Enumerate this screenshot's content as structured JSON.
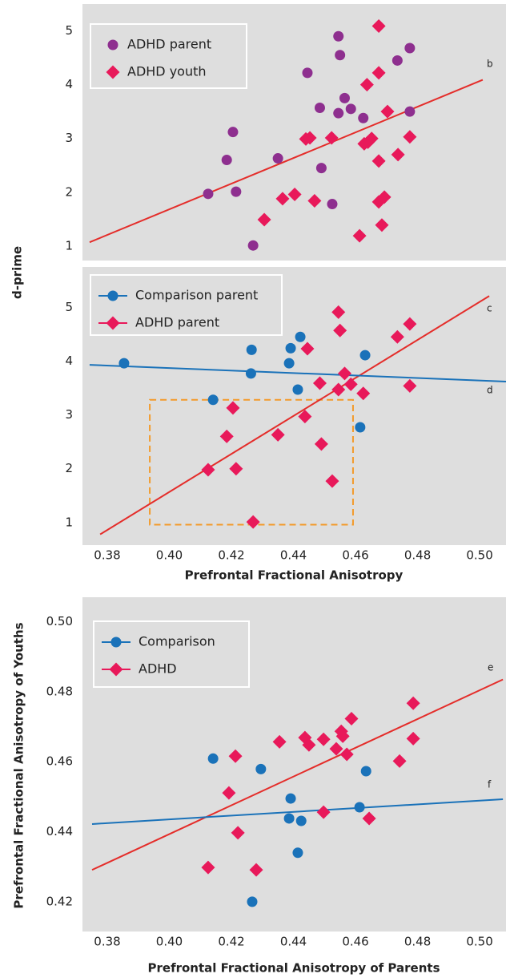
{
  "chart_data": [
    {
      "type": "scatter",
      "ylabel": "d-prime",
      "background": "#dedede",
      "xlim": [
        0.372,
        0.5085
      ],
      "ylim": [
        0.73,
        5.5
      ],
      "yticks": [
        1,
        2,
        3,
        4,
        5
      ],
      "legend": "upper left",
      "legend_line": false,
      "series": [
        {
          "name": "ADHD parent",
          "color": "#8e2f8f",
          "marker": "circle",
          "x": [
            0.4125,
            0.4185,
            0.4205,
            0.4215,
            0.427,
            0.435,
            0.4445,
            0.4485,
            0.449,
            0.4525,
            0.4545,
            0.455,
            0.4565,
            0.4585,
            0.4545,
            0.4625,
            0.4735,
            0.4775,
            0.4775
          ],
          "values": [
            1.97,
            2.6,
            3.12,
            2.01,
            1.01,
            2.63,
            4.22,
            3.57,
            2.45,
            1.78,
            4.9,
            4.55,
            3.75,
            3.55,
            3.47,
            3.38,
            4.45,
            3.5,
            4.68
          ]
        },
        {
          "name": "ADHD youth",
          "color": "#e8195a",
          "marker": "diamond",
          "x": [
            0.4675,
            0.4675,
            0.4637,
            0.4703,
            0.444,
            0.4453,
            0.4523,
            0.4628,
            0.4652,
            0.464,
            0.4775,
            0.4737,
            0.4675,
            0.4404,
            0.4365,
            0.4468,
            0.4306,
            0.4675,
            0.4693,
            0.4685,
            0.4613
          ],
          "values": [
            5.09,
            4.22,
            4.0,
            3.5,
            2.99,
            3.01,
            3.01,
            2.9,
            3.0,
            2.93,
            3.03,
            2.7,
            2.58,
            1.96,
            1.88,
            1.84,
            1.49,
            1.82,
            1.91,
            1.39,
            1.19
          ]
        }
      ],
      "lines": [
        {
          "label": "b",
          "color": "#e42d2a",
          "x": [
            0.3743,
            0.501
          ],
          "values": [
            1.07,
            4.09
          ]
        }
      ]
    },
    {
      "type": "scatter",
      "xlabel": "Prefrontal Fractional Anisotropy",
      "background": "#dedede",
      "xlim": [
        0.372,
        0.5085
      ],
      "ylim": [
        0.58,
        5.75
      ],
      "yticks": [
        1,
        2,
        3,
        4,
        5
      ],
      "xticks": [
        0.38,
        {
          "value": 0.4,
          "label": "0.40"
        },
        0.42,
        0.44,
        0.46,
        0.48,
        {
          "value": 0.5,
          "label": "0.50"
        }
      ],
      "legend": "upper left",
      "legend_line": true,
      "series": [
        {
          "name": "Comparison parent",
          "color": "#1a72b9",
          "marker": "circle",
          "x": [
            0.3854,
            0.4141,
            0.4265,
            0.4263,
            0.4391,
            0.4386,
            0.4422,
            0.4414,
            0.4631,
            0.4615
          ],
          "values": [
            3.96,
            3.28,
            4.21,
            3.77,
            4.24,
            3.96,
            4.45,
            3.47,
            4.11,
            2.77
          ]
        },
        {
          "name": "ADHD parent",
          "color": "#e8195a",
          "marker": "diamond",
          "x": [
            0.4125,
            0.4185,
            0.4205,
            0.4215,
            0.427,
            0.435,
            0.4445,
            0.4485,
            0.449,
            0.4525,
            0.4545,
            0.455,
            0.4565,
            0.4585,
            0.4545,
            0.4625,
            0.4735,
            0.4775,
            0.4775,
            0.4437
          ],
          "values": [
            1.98,
            2.6,
            3.13,
            2.0,
            1.01,
            2.63,
            4.23,
            3.59,
            2.46,
            1.77,
            4.91,
            4.57,
            3.77,
            3.57,
            3.47,
            3.4,
            4.45,
            3.54,
            4.69,
            2.97
          ]
        }
      ],
      "lines": [
        {
          "label": "c",
          "color": "#e42d2a",
          "x": [
            0.3777,
            0.5031
          ],
          "values": [
            0.78,
            5.21
          ]
        },
        {
          "label": "d",
          "color": "#1a72b9",
          "x": [
            0.3743,
            0.5085
          ],
          "values": [
            3.93,
            3.62
          ]
        }
      ],
      "highlight_box": {
        "color": "#f39a2a",
        "x": [
          0.3937,
          0.4592
        ],
        "values": [
          0.96,
          3.28
        ]
      }
    },
    {
      "type": "scatter",
      "xlabel": "Prefrontal Fractional Anisotropy of Parents",
      "ylabel": "Prefrontal Fractional Anisotropy of Youths",
      "background": "#dedede",
      "xlim": [
        0.372,
        0.5085
      ],
      "ylim": [
        0.4115,
        0.507
      ],
      "yticks": [
        0.42,
        0.44,
        0.46,
        0.48,
        {
          "value": 0.5,
          "label": "0.50"
        }
      ],
      "xticks": [
        0.38,
        {
          "value": 0.4,
          "label": "0.40"
        },
        0.42,
        0.44,
        0.46,
        0.48,
        {
          "value": 0.5,
          "label": "0.50"
        }
      ],
      "legend": "upper left",
      "legend_line": true,
      "series": [
        {
          "name": "Comparison",
          "color": "#1a72b9",
          "marker": "circle",
          "x": [
            0.4141,
            0.4295,
            0.4391,
            0.4386,
            0.4425,
            0.4414,
            0.4634,
            0.4613,
            0.4267
          ],
          "values": [
            0.4609,
            0.4579,
            0.4495,
            0.4438,
            0.4431,
            0.434,
            0.4573,
            0.447,
            0.42
          ]
        },
        {
          "name": "ADHD",
          "color": "#e8195a",
          "marker": "diamond",
          "x": [
            0.4125,
            0.4213,
            0.4192,
            0.4221,
            0.428,
            0.4355,
            0.4437,
            0.445,
            0.4497,
            0.4497,
            0.4538,
            0.4554,
            0.4559,
            0.4572,
            0.4587,
            0.4644,
            0.4742,
            0.4786,
            0.4786
          ],
          "values": [
            0.4298,
            0.4616,
            0.4511,
            0.4397,
            0.4291,
            0.4657,
            0.4669,
            0.4648,
            0.4664,
            0.4456,
            0.4637,
            0.4687,
            0.4673,
            0.4621,
            0.4723,
            0.4438,
            0.4602,
            0.4767,
            0.4666
          ]
        }
      ],
      "lines": [
        {
          "label": "e",
          "color": "#e42d2a",
          "x": [
            0.3751,
            0.5075
          ],
          "values": [
            0.4291,
            0.4835
          ]
        },
        {
          "label": "f",
          "color": "#1a72b9",
          "x": [
            0.3751,
            0.5075
          ],
          "values": [
            0.4422,
            0.4493
          ]
        }
      ]
    }
  ]
}
